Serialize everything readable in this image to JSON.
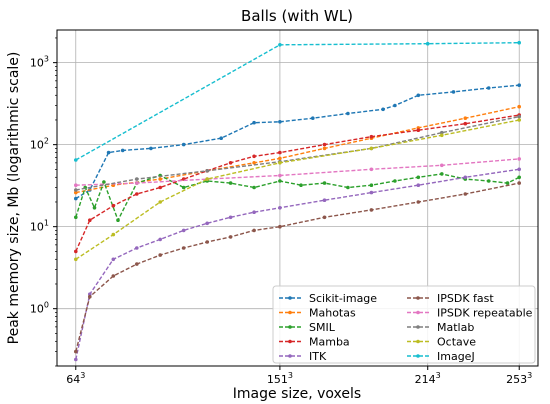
{
  "chart_data": {
    "type": "line",
    "title": "Balls (with WL)",
    "xlabel": "Image size, voxels",
    "ylabel": "Peak memory size, Mb (logarithmic scale)",
    "yscale": "log",
    "ylim": [
      0.2,
      2500
    ],
    "xlim": [
      56,
      261
    ],
    "grid": true,
    "legend_position": "bottom-right",
    "legend_columns": 2,
    "x_ticks": [
      {
        "value": 64,
        "base": "64",
        "exp": "3"
      },
      {
        "value": 151,
        "base": "151",
        "exp": "3"
      },
      {
        "value": 214,
        "base": "214",
        "exp": "3"
      },
      {
        "value": 253,
        "base": "253",
        "exp": "3"
      }
    ],
    "y_ticks": [
      {
        "value": 1,
        "base": "10",
        "exp": "0"
      },
      {
        "value": 10,
        "base": "10",
        "exp": "1"
      },
      {
        "value": 100,
        "base": "10",
        "exp": "2"
      },
      {
        "value": 1000,
        "base": "10",
        "exp": "3"
      }
    ],
    "series": [
      {
        "name": "Scikit-image",
        "color": "#1f77b4",
        "x": [
          64,
          70,
          78,
          84,
          96,
          110,
          126,
          140,
          151,
          165,
          180,
          195,
          200,
          210,
          225,
          240,
          253
        ],
        "y": [
          22,
          28,
          80,
          85,
          90,
          100,
          120,
          185,
          190,
          210,
          240,
          270,
          300,
          400,
          440,
          490,
          530
        ]
      },
      {
        "name": "Mahotas",
        "color": "#ff7f0e",
        "x": [
          64,
          80,
          100,
          120,
          140,
          151,
          170,
          190,
          210,
          230,
          253
        ],
        "y": [
          26,
          32,
          38,
          48,
          60,
          68,
          90,
          120,
          160,
          210,
          290
        ]
      },
      {
        "name": "SMIL",
        "color": "#2ca02c",
        "x": [
          64,
          68,
          72,
          76,
          82,
          90,
          100,
          110,
          120,
          130,
          140,
          151,
          160,
          170,
          180,
          190,
          200,
          210,
          220,
          230,
          240,
          248,
          253
        ],
        "y": [
          13,
          30,
          17,
          35,
          12,
          34,
          42,
          30,
          36,
          34,
          30,
          36,
          32,
          34,
          30,
          32,
          36,
          40,
          44,
          38,
          36,
          34,
          40
        ]
      },
      {
        "name": "Mamba",
        "color": "#d62728",
        "x": [
          64,
          70,
          80,
          90,
          100,
          110,
          120,
          130,
          140,
          151,
          170,
          190,
          210,
          230,
          253
        ],
        "y": [
          5,
          12,
          18,
          25,
          30,
          38,
          48,
          60,
          72,
          80,
          100,
          125,
          150,
          180,
          230
        ]
      },
      {
        "name": "ITK",
        "color": "#9467bd",
        "x": [
          64,
          70,
          80,
          90,
          100,
          110,
          120,
          130,
          140,
          151,
          170,
          190,
          210,
          230,
          253
        ],
        "y": [
          0.24,
          1.5,
          4,
          5.5,
          7,
          9,
          11,
          13,
          15,
          17,
          21,
          26,
          32,
          40,
          50
        ]
      },
      {
        "name": "IPSDK fast",
        "color": "#8c564b",
        "x": [
          64,
          70,
          80,
          90,
          100,
          110,
          120,
          130,
          140,
          151,
          170,
          190,
          210,
          230,
          253
        ],
        "y": [
          0.3,
          1.4,
          2.5,
          3.5,
          4.5,
          5.5,
          6.5,
          7.5,
          9,
          10,
          13,
          16,
          20,
          25,
          34
        ]
      },
      {
        "name": "IPSDK repeatable",
        "color": "#e377c2",
        "x": [
          64,
          90,
          120,
          151,
          190,
          220,
          253
        ],
        "y": [
          32,
          34,
          38,
          42,
          50,
          56,
          67
        ]
      },
      {
        "name": "Matlab",
        "color": "#7f7f7f",
        "x": [
          64,
          90,
          120,
          151,
          190,
          220,
          253
        ],
        "y": [
          28,
          38,
          48,
          62,
          90,
          140,
          220
        ]
      },
      {
        "name": "Octave",
        "color": "#bcbd22",
        "x": [
          64,
          80,
          100,
          120,
          151,
          190,
          220,
          253
        ],
        "y": [
          4,
          8,
          20,
          38,
          60,
          90,
          130,
          200
        ]
      },
      {
        "name": "ImageJ",
        "color": "#17becf",
        "x": [
          64,
          151,
          214,
          253
        ],
        "y": [
          65,
          1650,
          1700,
          1750
        ]
      }
    ]
  }
}
